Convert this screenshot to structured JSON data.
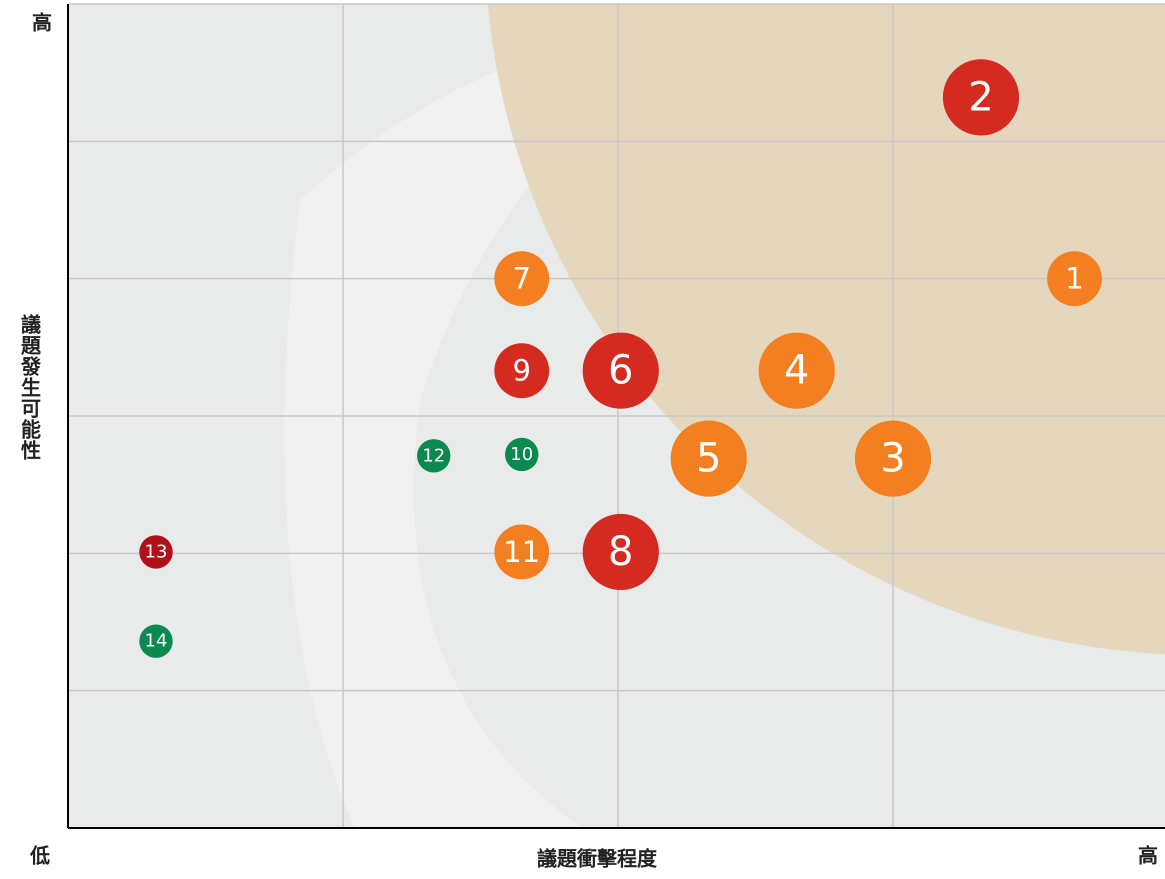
{
  "chart_data": {
    "type": "bubble",
    "x_label": "議題衝擊程度",
    "y_label": "議題發生可能性",
    "x_low_label": "低",
    "x_high_label": "高",
    "y_high_label": "高",
    "labels": [
      "1",
      "2",
      "3",
      "4",
      "5",
      "6",
      "7",
      "8",
      "9",
      "10",
      "11",
      "12",
      "13",
      "14"
    ],
    "x": [
      3.66,
      3.32,
      3.0,
      2.65,
      2.33,
      2.01,
      1.65,
      2.01,
      1.65,
      1.65,
      1.65,
      1.33,
      0.32,
      0.32
    ],
    "values": [
      4.0,
      5.32,
      2.69,
      3.33,
      2.69,
      3.33,
      4.0,
      2.01,
      3.33,
      2.72,
      2.01,
      2.71,
      2.01,
      1.36
    ],
    "sizes": [
      2,
      3,
      3,
      3,
      3,
      3,
      2,
      3,
      2,
      1,
      2,
      1,
      1,
      1
    ],
    "colors": [
      "#f47f20",
      "#d42a1f",
      "#f47f20",
      "#f47f20",
      "#f47f20",
      "#d42a1f",
      "#f47f20",
      "#d42a1f",
      "#d42a1f",
      "#0a8a4f",
      "#f47f20",
      "#0a8a4f",
      "#b0101a",
      "#0a8a4f"
    ],
    "xlim": [
      0,
      4
    ],
    "ylim": [
      0,
      6
    ],
    "xticks": [
      0,
      1,
      2,
      3,
      4
    ],
    "yticks": [
      0,
      1,
      2,
      3,
      4,
      5,
      6
    ],
    "grid": true
  }
}
